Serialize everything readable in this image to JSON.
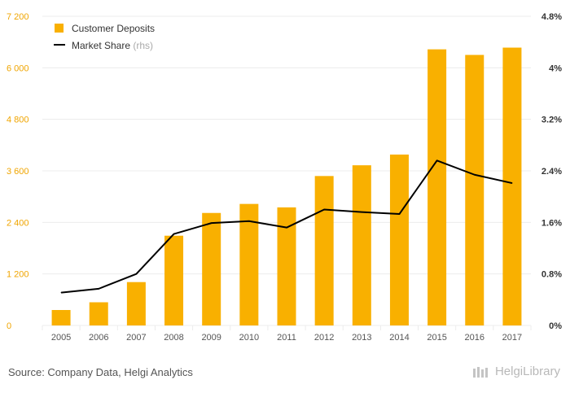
{
  "chart_data": {
    "type": "bar",
    "categories": [
      "2005",
      "2006",
      "2007",
      "2008",
      "2009",
      "2010",
      "2011",
      "2012",
      "2013",
      "2014",
      "2015",
      "2016",
      "2017"
    ],
    "series": [
      {
        "name": "Customer Deposits",
        "type": "bar",
        "axis": "left",
        "color": "#f9b000",
        "values": [
          360,
          540,
          1010,
          2090,
          2620,
          2830,
          2750,
          3480,
          3730,
          3980,
          6430,
          6300,
          6470
        ]
      },
      {
        "name": "Market Share",
        "type": "line",
        "axis": "right",
        "color": "#000000",
        "values": [
          0.51,
          0.57,
          0.8,
          1.42,
          1.59,
          1.62,
          1.52,
          1.8,
          1.76,
          1.73,
          2.56,
          2.34,
          2.21
        ]
      }
    ],
    "left_axis": {
      "ylim": [
        0,
        7200
      ],
      "ticks": [
        0,
        1200,
        2400,
        3600,
        4800,
        6000,
        7200
      ],
      "tick_labels": [
        "0",
        "1 200",
        "2 400",
        "3 600",
        "4 800",
        "6 000",
        "7 200"
      ]
    },
    "right_axis": {
      "ylim": [
        0,
        4.8
      ],
      "ticks": [
        0,
        0.8,
        1.6,
        2.4,
        3.2,
        4,
        4.8
      ],
      "tick_labels": [
        "0%",
        "0.8%",
        "1.6%",
        "2.4%",
        "3.2%",
        "4%",
        "4.8%"
      ]
    },
    "legend": {
      "placement": "top-left",
      "items": [
        {
          "label": "Customer Deposits",
          "suffix": ""
        },
        {
          "label": "Market Share",
          "suffix": "(rhs)"
        }
      ]
    },
    "grid": true
  },
  "footer": {
    "source": "Source: Company Data, Helgi Analytics",
    "brand": "HelgiLibrary"
  }
}
